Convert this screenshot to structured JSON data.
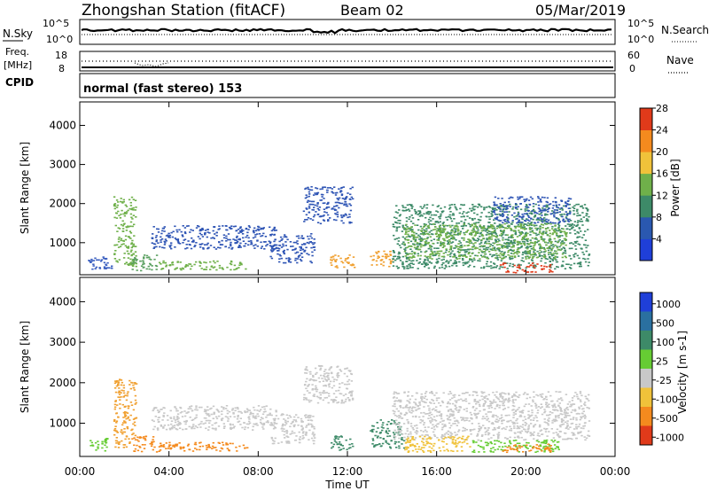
{
  "header": {
    "station": "Zhongshan Station (fitACF)",
    "beam": "Beam 02",
    "date": "05/Mar/2019"
  },
  "noise_panel": {
    "left_label": "N.Sky",
    "left_ticks": [
      "10^5",
      "10^0"
    ],
    "right_label": "N.Search",
    "right_ticks": [
      "10^5",
      "10^0"
    ]
  },
  "freq_panel": {
    "left_label_1": "Freq.",
    "left_label_2": "[MHz]",
    "left_ticks": [
      "18",
      "8"
    ],
    "right_label": "Nave",
    "right_ticks": [
      "60",
      "0"
    ]
  },
  "cpid": {
    "label": "CPID",
    "text": "normal (fast stereo) 153"
  },
  "chart_data": {
    "type": "heatmap",
    "xlabel": "Time UT",
    "x_ticks": [
      "00:00",
      "04:00",
      "08:00",
      "12:00",
      "16:00",
      "20:00",
      "00:00"
    ],
    "xlim_hours": [
      0,
      24
    ],
    "ylabel": "Slant Range [km]",
    "ylim_km": [
      180,
      4600
    ],
    "y_ticks": [
      1000,
      2000,
      3000,
      4000
    ],
    "panels": [
      {
        "name": "Power",
        "colorbar_label": "Power [dB]",
        "colorbar_ticks": [
          "4",
          "8",
          "12",
          "16",
          "20",
          "24",
          "28"
        ],
        "colorbar_colors": [
          "#1f3fd8",
          "#2a58b0",
          "#3d8a68",
          "#6fb04a",
          "#f0c23a",
          "#f48a1e",
          "#e03a1a"
        ],
        "echo_regions": [
          {
            "t0": 0.3,
            "t1": 1.5,
            "r0": 330,
            "r1": 700,
            "color": "#3a5fc0"
          },
          {
            "t0": 1.5,
            "t1": 2.5,
            "r0": 400,
            "r1": 2200,
            "color": "#6fb04a"
          },
          {
            "t0": 2.3,
            "t1": 3.5,
            "r0": 300,
            "r1": 700,
            "color": "#5aa060"
          },
          {
            "t0": 3.2,
            "t1": 8.8,
            "r0": 850,
            "r1": 1450,
            "color": "#2f55b5"
          },
          {
            "t0": 3.5,
            "t1": 7.5,
            "r0": 320,
            "r1": 550,
            "color": "#6fb04a"
          },
          {
            "t0": 8.5,
            "t1": 10.5,
            "r0": 500,
            "r1": 1250,
            "color": "#2f55b5"
          },
          {
            "t0": 10.0,
            "t1": 12.2,
            "r0": 1500,
            "r1": 2450,
            "color": "#2f55b5"
          },
          {
            "t0": 11.2,
            "t1": 12.3,
            "r0": 350,
            "r1": 700,
            "color": "#f0a030"
          },
          {
            "t0": 13.0,
            "t1": 14.0,
            "r0": 400,
            "r1": 800,
            "color": "#f0a030"
          },
          {
            "t0": 14.0,
            "t1": 22.8,
            "r0": 350,
            "r1": 2000,
            "color": "#3d8a68"
          },
          {
            "t0": 14.5,
            "t1": 21.8,
            "r0": 600,
            "r1": 1500,
            "color": "#6fb04a"
          },
          {
            "t0": 18.5,
            "t1": 22.0,
            "r0": 1500,
            "r1": 2200,
            "color": "#2f55b5"
          },
          {
            "t0": 18.8,
            "t1": 21.2,
            "r0": 250,
            "r1": 500,
            "color": "#e03a1a"
          }
        ]
      },
      {
        "name": "Velocity",
        "colorbar_label": "Velocity [m s-1]",
        "colorbar_ticks": [
          "1000",
          "500",
          "100",
          "25",
          "-25",
          "-100",
          "-500",
          "-1000"
        ],
        "colorbar_colors": [
          "#1f3fd8",
          "#2a70a0",
          "#3d8a68",
          "#66cc33",
          "#c8c8c8",
          "#f0c23a",
          "#f48a1e",
          "#e03a1a"
        ],
        "echo_regions": [
          {
            "t0": 0.3,
            "t1": 1.2,
            "r0": 330,
            "r1": 650,
            "color": "#66cc33"
          },
          {
            "t0": 1.5,
            "t1": 2.5,
            "r0": 400,
            "r1": 2100,
            "color": "#f0a030"
          },
          {
            "t0": 2.3,
            "t1": 3.5,
            "r0": 300,
            "r1": 700,
            "color": "#f48a1e"
          },
          {
            "t0": 3.2,
            "t1": 8.8,
            "r0": 850,
            "r1": 1450,
            "color": "#c8c8c8"
          },
          {
            "t0": 3.5,
            "t1": 7.5,
            "r0": 320,
            "r1": 550,
            "color": "#f48a1e"
          },
          {
            "t0": 8.5,
            "t1": 10.5,
            "r0": 500,
            "r1": 1250,
            "color": "#c8c8c8"
          },
          {
            "t0": 10.0,
            "t1": 12.2,
            "r0": 1500,
            "r1": 2450,
            "color": "#c8c8c8"
          },
          {
            "t0": 11.2,
            "t1": 12.3,
            "r0": 350,
            "r1": 700,
            "color": "#3d8a68"
          },
          {
            "t0": 13.0,
            "t1": 14.5,
            "r0": 400,
            "r1": 1100,
            "color": "#3d8a68"
          },
          {
            "t0": 14.0,
            "t1": 22.8,
            "r0": 600,
            "r1": 1800,
            "color": "#c8c8c8"
          },
          {
            "t0": 14.5,
            "t1": 17.5,
            "r0": 300,
            "r1": 700,
            "color": "#f0c23a"
          },
          {
            "t0": 17.5,
            "t1": 21.5,
            "r0": 300,
            "r1": 600,
            "color": "#66cc33"
          },
          {
            "t0": 18.8,
            "t1": 21.2,
            "r0": 300,
            "r1": 500,
            "color": "#f48a1e"
          }
        ]
      }
    ]
  }
}
